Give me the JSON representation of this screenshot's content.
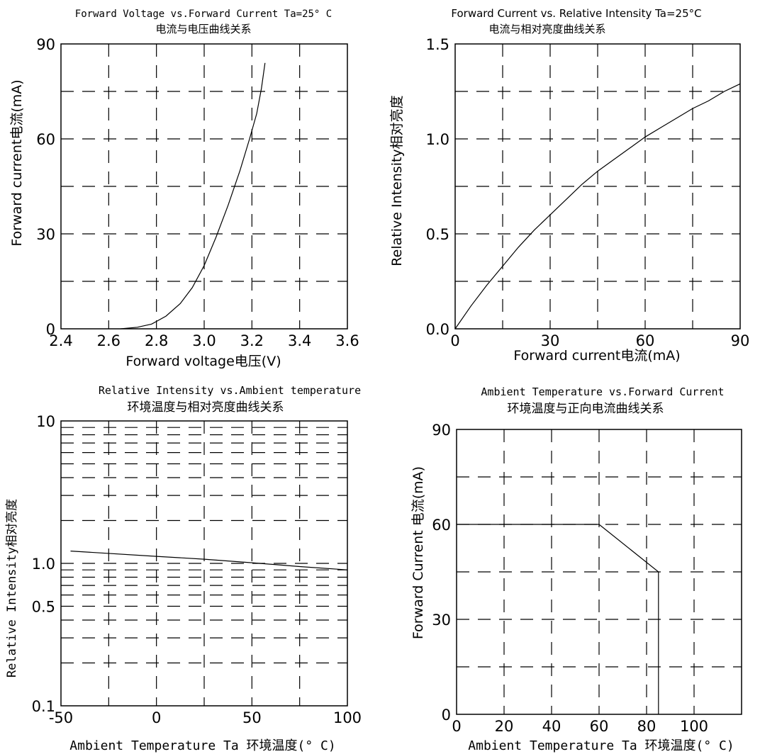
{
  "chart_data": [
    {
      "type": "line",
      "title": "Forward Voltage vs.Forward Current Ta=25° C",
      "subtitle": "电流与电压曲线关系",
      "xlabel": "Forward voltage电压(V)",
      "ylabel": "Forward current电流(mA)",
      "xlim": [
        2.4,
        3.6
      ],
      "ylim": [
        0,
        90
      ],
      "x_ticks": [
        "2.4",
        "2.6",
        "2.8",
        "3.0",
        "3.2",
        "3.4",
        "3.6"
      ],
      "y_ticks": [
        "0",
        "30",
        "60",
        "90"
      ],
      "grid": true,
      "series": [
        {
          "x": [
            2.65,
            2.72,
            2.78,
            2.84,
            2.9,
            2.95,
            3.0,
            3.05,
            3.1,
            3.15,
            3.19,
            3.22,
            3.24,
            3.255
          ],
          "y": [
            0,
            0.5,
            1.5,
            4,
            8,
            13,
            20,
            29,
            39,
            50,
            60,
            68,
            76,
            84
          ]
        }
      ]
    },
    {
      "type": "line",
      "title": "Forward Current vs. Relative Intensity Ta=25°C",
      "subtitle": "电流与相对亮度曲线关系",
      "xlabel": "Forward current电流(mA)",
      "ylabel": "Relative Intensity相对亮度",
      "xlim": [
        0,
        90
      ],
      "ylim": [
        0,
        1.5
      ],
      "x_ticks": [
        "0",
        "30",
        "60",
        "90"
      ],
      "y_ticks": [
        "0.0",
        "0.5",
        "1.0",
        "1.5"
      ],
      "grid": true,
      "series": [
        {
          "x": [
            0,
            5,
            10,
            15,
            20,
            25,
            30,
            35,
            40,
            45,
            50,
            55,
            60,
            65,
            70,
            75,
            80,
            85,
            90
          ],
          "y": [
            0,
            0.12,
            0.23,
            0.33,
            0.43,
            0.52,
            0.6,
            0.68,
            0.76,
            0.83,
            0.89,
            0.95,
            1.01,
            1.06,
            1.11,
            1.16,
            1.2,
            1.25,
            1.29
          ]
        }
      ]
    },
    {
      "type": "line",
      "title": "Relative Intensity vs.Ambient temperature",
      "subtitle": "环境温度与相对亮度曲线关系",
      "xlabel": "Ambient Temperature Ta 环境温度(° C)",
      "ylabel": "Relative Intensity相对亮度",
      "xlim": [
        -50,
        100
      ],
      "ylim": [
        0.1,
        10
      ],
      "y_scale": "log",
      "x_ticks": [
        "-50",
        "0",
        "50",
        "100"
      ],
      "y_ticks": [
        "0.1",
        "0.5",
        "1.0",
        "10"
      ],
      "grid": true,
      "series": [
        {
          "x": [
            -45,
            0,
            25,
            50,
            75,
            100
          ],
          "y": [
            1.22,
            1.12,
            1.07,
            1.01,
            0.95,
            0.9
          ]
        }
      ]
    },
    {
      "type": "line",
      "title": "Ambient Temperature vs.Forward Current",
      "subtitle": "环境温度与正向电流曲线关系",
      "xlabel": "Ambient Temperature Ta 环境温度(° C)",
      "ylabel": "Forward Current 电流(mA)",
      "xlim": [
        0,
        120
      ],
      "ylim": [
        0,
        90
      ],
      "x_ticks": [
        "0",
        "20",
        "40",
        "60",
        "80",
        "100"
      ],
      "y_ticks": [
        "0",
        "30",
        "60",
        "90"
      ],
      "grid": true,
      "series": [
        {
          "x": [
            0,
            60,
            85,
            85
          ],
          "y": [
            60,
            60,
            45,
            0
          ]
        }
      ]
    }
  ]
}
